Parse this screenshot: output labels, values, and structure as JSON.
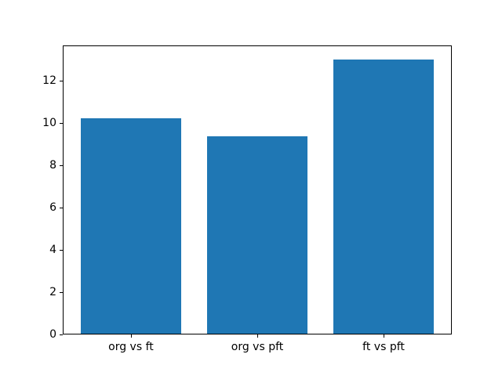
{
  "figure": {
    "background": "#ffffff",
    "frame_color": "#000000",
    "tick_color": "#000000",
    "label_color": "#000000"
  },
  "chart_data": {
    "type": "bar",
    "categories": [
      "org vs ft",
      "org vs pft",
      "ft vs pft"
    ],
    "values": [
      10.2,
      9.35,
      13.0
    ],
    "title": "",
    "xlabel": "",
    "ylabel": "",
    "ylim": [
      0,
      13.65
    ],
    "xlim": [
      -0.54,
      2.54
    ],
    "yticks": [
      0,
      2,
      4,
      6,
      8,
      10,
      12
    ],
    "bar_width": 0.8,
    "bar_color": "#1f77b4",
    "grid": false,
    "legend": null
  }
}
